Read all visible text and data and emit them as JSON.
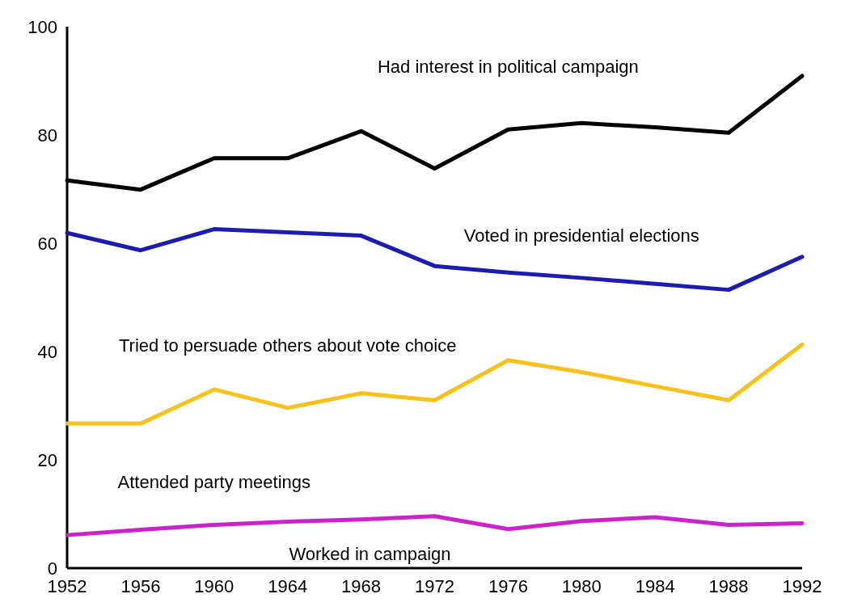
{
  "chart_data": {
    "type": "line",
    "x": [
      1952,
      1956,
      1960,
      1964,
      1968,
      1972,
      1976,
      1980,
      1984,
      1988,
      1992
    ],
    "xlim": [
      1952,
      1992
    ],
    "xticks": [
      1952,
      1956,
      1960,
      1964,
      1968,
      1972,
      1976,
      1980,
      1984,
      1988,
      1992
    ],
    "ylim": [
      0,
      100
    ],
    "yticks": [
      0,
      20,
      40,
      60,
      80,
      100
    ],
    "marker": "none",
    "line_style": "solid",
    "series": [
      {
        "name": "Had interest in political campaign",
        "color": "#000000",
        "values": [
          71.6,
          69.9,
          75.7,
          75.7,
          80.7,
          73.8,
          81,
          82.2,
          81.4,
          80.4,
          90.9
        ]
      },
      {
        "name": "Voted in presidential elections",
        "color": "#1c1cb0",
        "values": [
          61.9,
          58.7,
          62.6,
          62,
          61.4,
          55.8,
          54.6,
          53.6,
          52.5,
          51.4,
          57.5
        ]
      },
      {
        "name": "Tried to persuade others about vote choice",
        "color": "#f7c21c",
        "values": [
          26.7,
          26.7,
          33,
          29.6,
          32.3,
          31,
          38.4,
          36.2,
          33.6,
          31,
          41.3
        ]
      },
      {
        "name": "Attended party meetings",
        "color": "#cc22cc",
        "values": [
          6.1,
          7.1,
          8,
          8.6,
          9,
          9.6,
          7.2,
          8.7,
          9.4,
          8,
          8.3
        ]
      }
    ],
    "annotations": [
      "Worked in campaign"
    ]
  }
}
